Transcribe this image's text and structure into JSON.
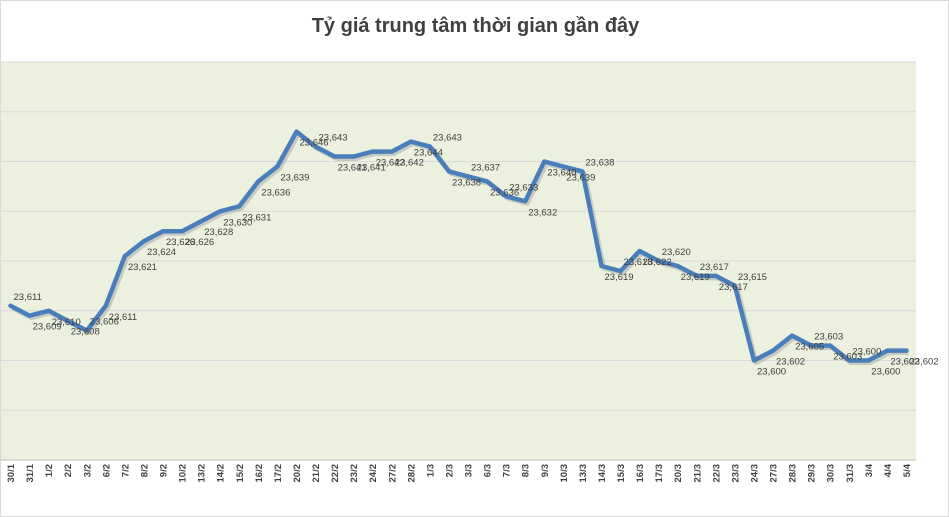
{
  "chart_data": {
    "type": "line",
    "title": "Tỷ giá trung tâm thời gian gần đây",
    "xlabel": "",
    "ylabel": "",
    "ylim": [
      23580,
      23660
    ],
    "grid": true,
    "legend": "none",
    "colors": {
      "plot_bg": "#ebf1de",
      "line": "#4a7ebb",
      "grid": "#d9d9d9",
      "text": "#404040"
    },
    "categories": [
      "30/1",
      "31/1",
      "1/2",
      "2/2",
      "3/2",
      "6/2",
      "7/2",
      "8/2",
      "9/2",
      "10/2",
      "13/2",
      "14/2",
      "15/2",
      "16/2",
      "17/2",
      "20/2",
      "21/2",
      "22/2",
      "23/2",
      "24/2",
      "27/2",
      "28/2",
      "1/3",
      "2/3",
      "3/3",
      "6/3",
      "7/3",
      "8/3",
      "9/3",
      "10/3",
      "13/3",
      "14/3",
      "15/3",
      "16/3",
      "17/3",
      "20/3",
      "21/3",
      "22/3",
      "23/3",
      "24/3",
      "27/3",
      "28/3",
      "29/3",
      "30/3",
      "31/3",
      "3/4",
      "4/4",
      "5/4"
    ],
    "values": [
      23611,
      23609,
      23610,
      23608,
      23606,
      23611,
      23621,
      23624,
      23626,
      23626,
      23628,
      23630,
      23631,
      23636,
      23639,
      23646,
      23643,
      23641,
      23641,
      23642,
      23642,
      23644,
      23643,
      23638,
      23637,
      23636,
      23633,
      23632,
      23640,
      23639,
      23638,
      23619,
      23618,
      23622,
      23620,
      23619,
      23617,
      23617,
      23615,
      23600,
      23602,
      23605,
      23603,
      23603,
      23600,
      23600,
      23602,
      23602
    ],
    "data_labels": [
      "23,611",
      "23,609",
      "23,610",
      "23,608",
      "23,606",
      "23,611",
      "23,621",
      "23,624",
      "23,626",
      "23,626",
      "23,628",
      "23,630",
      "23,631",
      "23,636",
      "23,639",
      "23,646",
      "23,643",
      "23,641",
      "23,641",
      "23,642",
      "23,642",
      "23,644",
      "23,643",
      "23,638",
      "23,637",
      "23,636",
      "23,633",
      "23,632",
      "23,640",
      "23,639",
      "23,638",
      "23,619",
      "23,618",
      "23,622",
      "23,620",
      "23,619",
      "23,617",
      "23,617",
      "23,615",
      "23,600",
      "23,602",
      "23,605",
      "23,603",
      "23,603",
      "23,600",
      "23,600",
      "23,602",
      "23,602"
    ]
  }
}
